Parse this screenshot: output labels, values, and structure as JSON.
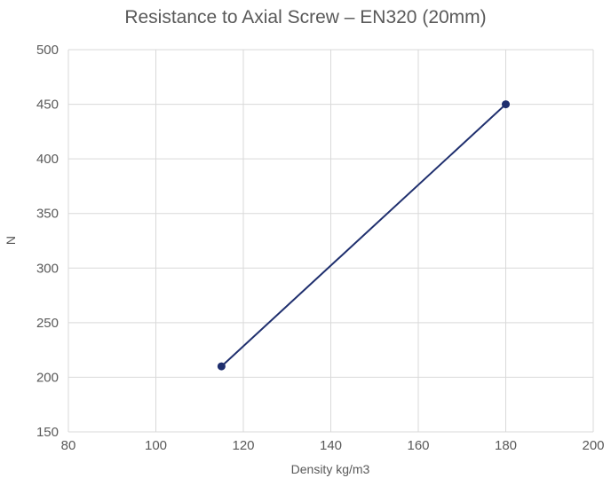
{
  "chart_data": {
    "type": "line",
    "title": "Resistance to Axial Screw – EN320 (20mm)",
    "xlabel": "Density kg/m3",
    "ylabel": "N",
    "xlim": [
      80,
      200
    ],
    "ylim": [
      150,
      500
    ],
    "xticks": [
      80,
      100,
      120,
      140,
      160,
      180,
      200
    ],
    "yticks": [
      150,
      200,
      250,
      300,
      350,
      400,
      450,
      500
    ],
    "grid": true,
    "series": [
      {
        "x": [
          115,
          180
        ],
        "y": [
          210,
          450
        ],
        "color": "#1f2f6e"
      }
    ]
  }
}
